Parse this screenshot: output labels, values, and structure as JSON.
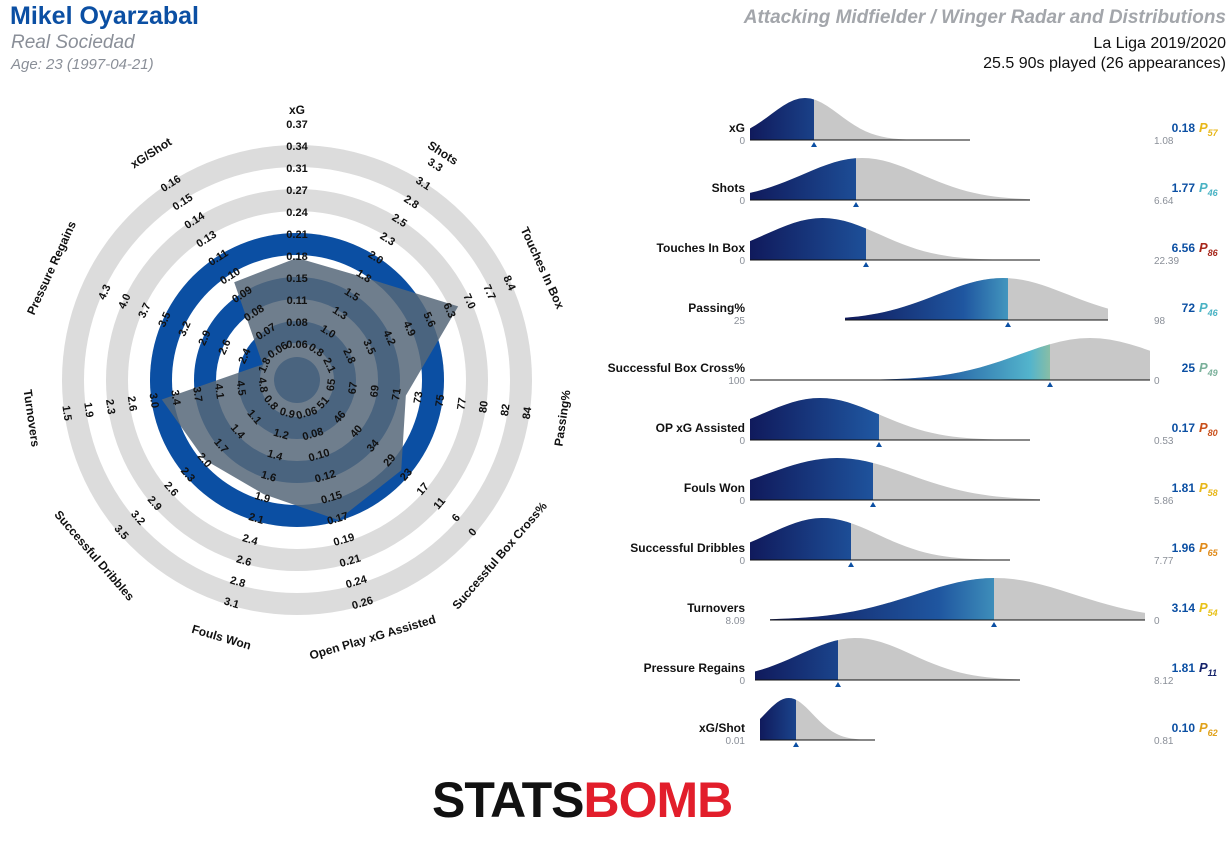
{
  "header": {
    "player": "Mikel Oyarzabal",
    "team": "Real Sociedad",
    "age": "Age: 23 (1997-04-21)",
    "title": "Attacking Midfielder / Winger Radar and Distributions",
    "league": "La Liga 2019/2020",
    "played": "25.5 90s played (26 appearances)"
  },
  "colors": {
    "brand_blue": "#0b4fa3",
    "ring_grey": "#dcdcdc",
    "polygon_fill": "#566779",
    "distribution_grey": "#c8c8c8"
  },
  "logo": {
    "stats": "STATS",
    "bomb": "BOMB"
  },
  "chart_data": [
    {
      "type": "radar",
      "axes": [
        {
          "name": "xG",
          "ticks": [
            "0.06",
            "0.08",
            "0.11",
            "0.15",
            "0.18",
            "0.21",
            "0.24",
            "0.27",
            "0.31",
            "0.34",
            "0.37"
          ],
          "value": 0.18
        },
        {
          "name": "Shots",
          "ticks": [
            "0.8",
            "1.0",
            "1.3",
            "1.5",
            "1.8",
            "2.0",
            "2.3",
            "2.5",
            "2.8",
            "3.1",
            "3.3"
          ],
          "value": 1.77
        },
        {
          "name": "Touches In Box",
          "ticks": [
            "2.1",
            "2.8",
            "3.5",
            "4.2",
            "4.9",
            "5.6",
            "6.3",
            "7.0",
            "7.7",
            "8.4"
          ],
          "value": 6.56
        },
        {
          "name": "Passing%",
          "ticks": [
            "65",
            "67",
            "69",
            "71",
            "73",
            "75",
            "77",
            "80",
            "82",
            "84"
          ],
          "value": 72
        },
        {
          "name": "Successful Box Cross%",
          "ticks": [
            "51",
            "46",
            "40",
            "34",
            "29",
            "23",
            "17",
            "11",
            "6",
            "0"
          ],
          "value": 25
        },
        {
          "name": "Open Play xG Assisted",
          "ticks": [
            "0.06",
            "0.08",
            "0.10",
            "0.12",
            "0.15",
            "0.17",
            "0.19",
            "0.21",
            "0.24",
            "0.26"
          ],
          "value": 0.17
        },
        {
          "name": "Fouls Won",
          "ticks": [
            "0.9",
            "1.2",
            "1.4",
            "1.6",
            "1.9",
            "2.1",
            "2.4",
            "2.6",
            "2.8",
            "3.1"
          ],
          "value": 1.81
        },
        {
          "name": "Successful Dribbles",
          "ticks": [
            "0.8",
            "1.1",
            "1.4",
            "1.7",
            "2.0",
            "2.3",
            "2.6",
            "2.9",
            "3.2",
            "3.5"
          ],
          "value": 1.96
        },
        {
          "name": "Turnovers",
          "ticks": [
            "4.8",
            "4.5",
            "4.1",
            "3.7",
            "3.4",
            "3.0",
            "2.6",
            "2.3",
            "1.9",
            "1.5"
          ],
          "value": 3.14
        },
        {
          "name": "Pressure Regains",
          "ticks": [
            "1.8",
            "2.4",
            "2.6",
            "2.9",
            "3.2",
            "3.5",
            "3.7",
            "4.0",
            "4.3"
          ],
          "value": 1.81
        },
        {
          "name": "xG/Shot",
          "ticks": [
            "0.06",
            "0.07",
            "0.08",
            "0.09",
            "0.10",
            "0.11",
            "0.13",
            "0.14",
            "0.15",
            "0.16"
          ],
          "value": 0.1
        }
      ]
    },
    {
      "type": "area",
      "rows": [
        {
          "label": "xG",
          "min": "0",
          "max": "1.08",
          "value": "0.18",
          "pct": 57,
          "pct_color": "#e8b71a"
        },
        {
          "label": "Shots",
          "min": "0",
          "max": "6.64",
          "value": "1.77",
          "pct": 46,
          "pct_color": "#4ab3c4"
        },
        {
          "label": "Touches In Box",
          "min": "0",
          "max": "22.39",
          "value": "6.56",
          "pct": 86,
          "pct_color": "#a8271b"
        },
        {
          "label": "Passing%",
          "min": "25",
          "max": "98",
          "value": "72",
          "pct": 46,
          "pct_color": "#4ab3c4"
        },
        {
          "label": "Successful Box Cross%",
          "min": "100",
          "max": "0",
          "value": "25",
          "pct": 49,
          "pct_color": "#7ab09a"
        },
        {
          "label": "OP xG Assisted",
          "min": "0",
          "max": "0.53",
          "value": "0.17",
          "pct": 80,
          "pct_color": "#c9501b"
        },
        {
          "label": "Fouls Won",
          "min": "0",
          "max": "5.86",
          "value": "1.81",
          "pct": 58,
          "pct_color": "#e8b71a"
        },
        {
          "label": "Successful Dribbles",
          "min": "0",
          "max": "7.77",
          "value": "1.96",
          "pct": 65,
          "pct_color": "#e08b1b"
        },
        {
          "label": "Turnovers",
          "min": "8.09",
          "max": "0",
          "value": "3.14",
          "pct": 54,
          "pct_color": "#e8c21a"
        },
        {
          "label": "Pressure Regains",
          "min": "0",
          "max": "8.12",
          "value": "1.81",
          "pct": 11,
          "pct_color": "#15236b"
        },
        {
          "label": "xG/Shot",
          "min": "0.01",
          "max": "0.81",
          "value": "0.10",
          "pct": 62,
          "pct_color": "#e0a21b"
        }
      ]
    }
  ]
}
